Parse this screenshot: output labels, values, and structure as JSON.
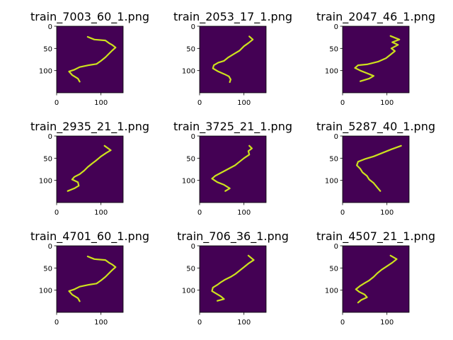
{
  "figure": {
    "background": "#ffffff"
  },
  "chart_data": [
    {
      "type": "line",
      "title": "train_7003_60_1.png",
      "xlim": [
        0,
        150
      ],
      "ylim": [
        150,
        0
      ],
      "xticks": [
        0,
        100
      ],
      "yticks": [
        0,
        50,
        100
      ],
      "background_color": "#440154",
      "line_color": "#cde11d",
      "grid": false,
      "x": [
        70,
        85,
        110,
        118,
        125,
        133,
        125,
        118,
        110,
        100,
        90,
        72,
        52,
        40,
        28,
        35,
        48,
        52
      ],
      "y": [
        24,
        30,
        32,
        38,
        42,
        48,
        55,
        62,
        70,
        78,
        85,
        88,
        92,
        98,
        102,
        110,
        118,
        125
      ]
    },
    {
      "type": "line",
      "title": "train_2053_17_1.png",
      "xlim": [
        0,
        150
      ],
      "ylim": [
        150,
        0
      ],
      "xticks": [
        0,
        100
      ],
      "yticks": [
        0,
        50,
        100
      ],
      "background_color": "#440154",
      "line_color": "#cde11d",
      "grid": false,
      "x": [
        112,
        120,
        110,
        100,
        90,
        78,
        65,
        55,
        42,
        32,
        30,
        42,
        56,
        66,
        70,
        68
      ],
      "y": [
        23,
        30,
        38,
        45,
        55,
        62,
        70,
        78,
        82,
        88,
        95,
        102,
        108,
        113,
        120,
        126
      ]
    },
    {
      "type": "line",
      "title": "train_2047_46_1.png",
      "xlim": [
        0,
        150
      ],
      "ylim": [
        150,
        0
      ],
      "xticks": [
        0,
        100
      ],
      "yticks": [
        0,
        50,
        100
      ],
      "background_color": "#440154",
      "line_color": "#cde11d",
      "grid": false,
      "x": [
        108,
        128,
        112,
        125,
        110,
        118,
        108,
        98,
        80,
        55,
        35,
        28,
        40,
        55,
        70,
        60,
        40
      ],
      "y": [
        22,
        30,
        36,
        42,
        50,
        56,
        64,
        72,
        80,
        86,
        88,
        94,
        100,
        106,
        112,
        118,
        124
      ]
    },
    {
      "type": "line",
      "title": "train_2935_21_1.png",
      "xlim": [
        0,
        150
      ],
      "ylim": [
        150,
        0
      ],
      "xticks": [
        0,
        100
      ],
      "yticks": [
        0,
        50,
        100
      ],
      "background_color": "#440154",
      "line_color": "#cde11d",
      "grid": false,
      "x": [
        108,
        122,
        112,
        100,
        88,
        80,
        70,
        62,
        52,
        40,
        35,
        48,
        50,
        40,
        25
      ],
      "y": [
        22,
        32,
        38,
        46,
        56,
        62,
        70,
        78,
        86,
        92,
        98,
        104,
        112,
        118,
        124
      ]
    },
    {
      "type": "line",
      "title": "train_3725_21_1.png",
      "xlim": [
        0,
        150
      ],
      "ylim": [
        150,
        0
      ],
      "xticks": [
        0,
        100
      ],
      "yticks": [
        0,
        50,
        100
      ],
      "background_color": "#440154",
      "line_color": "#cde11d",
      "grid": false,
      "x": [
        112,
        118,
        110,
        112,
        100,
        90,
        80,
        65,
        50,
        35,
        28,
        40,
        55,
        68,
        58
      ],
      "y": [
        22,
        28,
        34,
        42,
        50,
        58,
        66,
        74,
        82,
        90,
        96,
        104,
        110,
        118,
        124
      ]
    },
    {
      "type": "line",
      "title": "train_5287_40_1.png",
      "xlim": [
        0,
        150
      ],
      "ylim": [
        150,
        0
      ],
      "xticks": [
        0,
        100
      ],
      "yticks": [
        0,
        50,
        100
      ],
      "background_color": "#440154",
      "line_color": "#cde11d",
      "grid": false,
      "x": [
        132,
        110,
        90,
        70,
        50,
        35,
        32,
        40,
        45,
        55,
        60,
        70,
        75,
        80,
        85
      ],
      "y": [
        22,
        30,
        38,
        46,
        52,
        58,
        66,
        74,
        82,
        90,
        98,
        106,
        112,
        118,
        124
      ]
    },
    {
      "type": "line",
      "title": "train_4701_60_1.png",
      "xlim": [
        0,
        150
      ],
      "ylim": [
        150,
        0
      ],
      "xticks": [
        0,
        100
      ],
      "yticks": [
        0,
        50,
        100
      ],
      "background_color": "#440154",
      "line_color": "#cde11d",
      "grid": false,
      "x": [
        70,
        85,
        110,
        118,
        125,
        133,
        125,
        118,
        110,
        100,
        90,
        72,
        52,
        40,
        28,
        35,
        48,
        52
      ],
      "y": [
        24,
        30,
        32,
        38,
        42,
        48,
        55,
        62,
        70,
        78,
        85,
        88,
        92,
        98,
        102,
        110,
        118,
        125
      ]
    },
    {
      "type": "line",
      "title": "train_706_36_1.png",
      "xlim": [
        0,
        150
      ],
      "ylim": [
        150,
        0
      ],
      "xticks": [
        0,
        100
      ],
      "yticks": [
        0,
        50,
        100
      ],
      "background_color": "#440154",
      "line_color": "#cde11d",
      "grid": false,
      "x": [
        110,
        122,
        110,
        100,
        90,
        80,
        70,
        58,
        48,
        40,
        30,
        28,
        38,
        48,
        55,
        40
      ],
      "y": [
        22,
        32,
        40,
        48,
        56,
        64,
        70,
        76,
        82,
        88,
        94,
        102,
        108,
        114,
        120,
        124
      ]
    },
    {
      "type": "line",
      "title": "train_4507_21_1.png",
      "xlim": [
        0,
        150
      ],
      "ylim": [
        150,
        0
      ],
      "xticks": [
        0,
        100
      ],
      "yticks": [
        0,
        50,
        100
      ],
      "background_color": "#440154",
      "line_color": "#cde11d",
      "grid": false,
      "x": [
        108,
        122,
        112,
        100,
        88,
        78,
        70,
        60,
        50,
        40,
        30,
        38,
        50,
        55,
        42,
        35
      ],
      "y": [
        22,
        30,
        38,
        46,
        54,
        62,
        70,
        78,
        84,
        90,
        98,
        104,
        110,
        116,
        122,
        128
      ]
    }
  ]
}
